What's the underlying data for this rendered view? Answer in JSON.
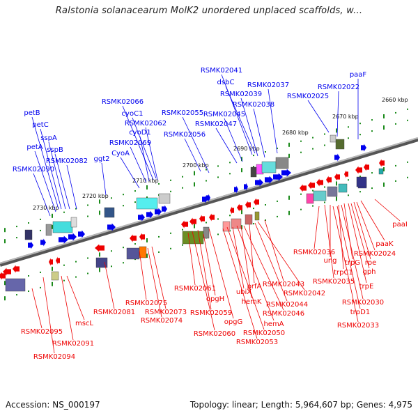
{
  "title": "Ralstonia solanacearum MolK2 unordered unplaced scaffolds, w...",
  "footer": {
    "accession": "Accession: NS_000197",
    "summary": "Topology: linear; Length: 5,964,607 bp; Genes: 4,975"
  },
  "colors": {
    "upper_strand": "#0000ee",
    "lower_strand": "#ee0000",
    "backbone": "#7a7a7a",
    "tick": "#1a8a1a"
  },
  "scale_labels": [
    "2660 kbp",
    "2670 kbp",
    "2680 kbp",
    "2690 kbp",
    "2700 kbp",
    "2710 kbp",
    "2720 kbp",
    "2730 kbp"
  ],
  "upper_genes": [
    "paaF",
    "RSMK02022",
    "RSMK02025",
    "RSMK02037",
    "RSMK02041",
    "dsbC",
    "RSMK02039",
    "RSMK02038",
    "RSMK02045",
    "RSMK02047",
    "RSMK02055",
    "RSMK02056",
    "RSMK02066",
    "cyoC1",
    "RSMK02062",
    "cyoD1",
    "RSMK02069",
    "CyoA",
    "ggt2",
    "RSMK02082",
    "sspB",
    "sspA",
    "petC",
    "petB",
    "petA",
    "RSMK02090"
  ],
  "lower_genes": [
    "paaI",
    "paaK",
    "RSMK02024",
    "rpe",
    "gph",
    "trpG",
    "trpE",
    "trpC1",
    "ung",
    "RSMK02036",
    "RSMK02035",
    "RSMK02030",
    "trpD1",
    "RSMK02033",
    "RSMK02043",
    "RSMK02042",
    "RSMK02044",
    "prfA",
    "RSMK02046",
    "hemK",
    "hemA",
    "ubiX",
    "RSMK02050",
    "RSMK02053",
    "opgG",
    "RSMK02059",
    "RSMK02060",
    "opgH",
    "RSMK02061",
    "RSMK02073",
    "RSMK02074",
    "RSMK02075",
    "RSMK02081",
    "mscL",
    "RSMK02091",
    "RSMK02094",
    "RSMK02095"
  ]
}
